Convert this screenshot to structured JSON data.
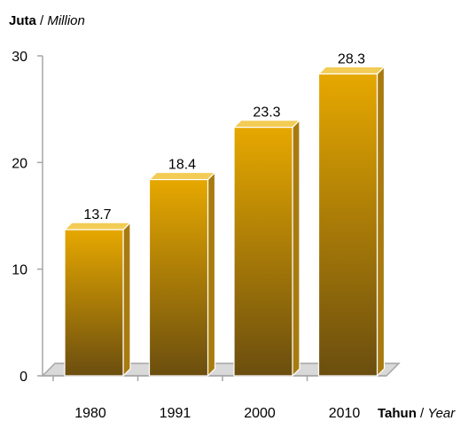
{
  "chart_data": {
    "type": "bar",
    "style": "3d",
    "categories": [
      "1980",
      "1991",
      "2000",
      "2010"
    ],
    "values": [
      13.7,
      18.4,
      23.3,
      28.3
    ],
    "data_labels": [
      "13.7",
      "18.4",
      "23.3",
      "28.3"
    ],
    "y_axis": {
      "label_bold": "Juta",
      "label_sep": " / ",
      "label_italic": "Million",
      "ticks": [
        0,
        10,
        20,
        30
      ],
      "ylim": [
        0,
        30
      ]
    },
    "x_axis": {
      "label_bold": "Tahun",
      "label_sep": " / ",
      "label_italic": "Year"
    },
    "grid": false,
    "legend": "none",
    "colors": {
      "bar_top": "#e6a800",
      "bar_bottom": "#6b4e0f",
      "bar_side": "#a87b10",
      "bar_cap": "#f2cc55",
      "bar_outline": "#ffffff",
      "floor": "#d9d9d9",
      "axis": "#a6a6a6"
    }
  }
}
